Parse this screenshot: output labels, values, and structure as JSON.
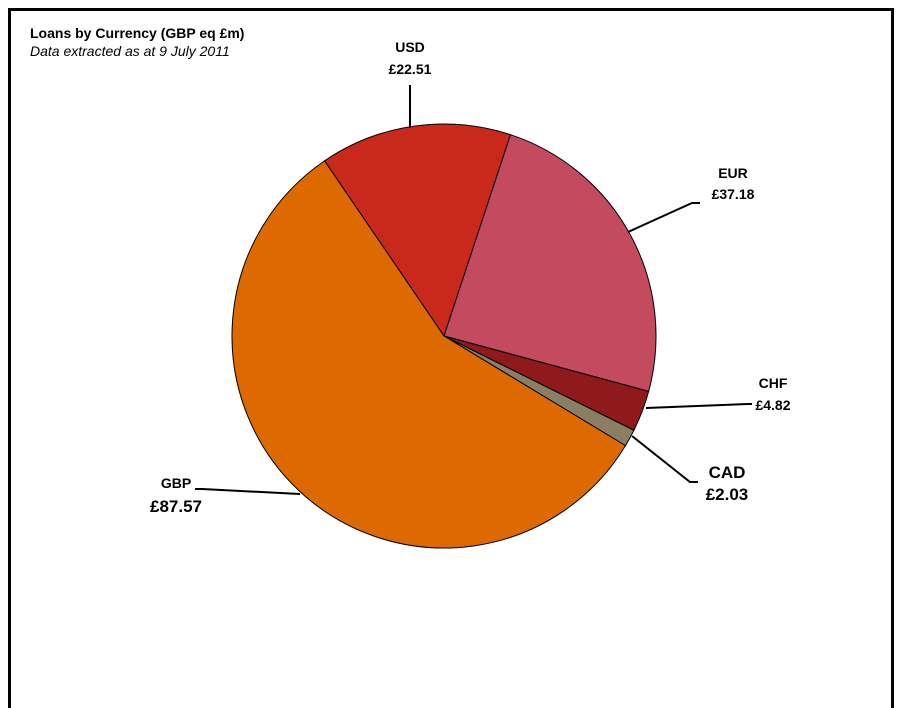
{
  "chart_data": {
    "type": "pie",
    "title": "Loans by Currency (GBP eq £m)",
    "subtitle": "Data extracted as at 9 July 2011",
    "slices": [
      {
        "label": "USD",
        "value_label": "£22.51",
        "value": 22.51,
        "color": "#C8291B"
      },
      {
        "label": "EUR",
        "value_label": "£37.18",
        "value": 37.18,
        "color": "#C44A5F"
      },
      {
        "label": "CHF",
        "value_label": "£4.82",
        "value": 4.82,
        "color": "#8F1A1C"
      },
      {
        "label": "CAD",
        "value_label": "£2.03",
        "value": 2.03,
        "color": "#8A7F62"
      },
      {
        "label": "GBP",
        "value_label": "£87.57",
        "value": 87.57,
        "color": "#DD6A00"
      }
    ],
    "legend": "none",
    "grid": false
  }
}
